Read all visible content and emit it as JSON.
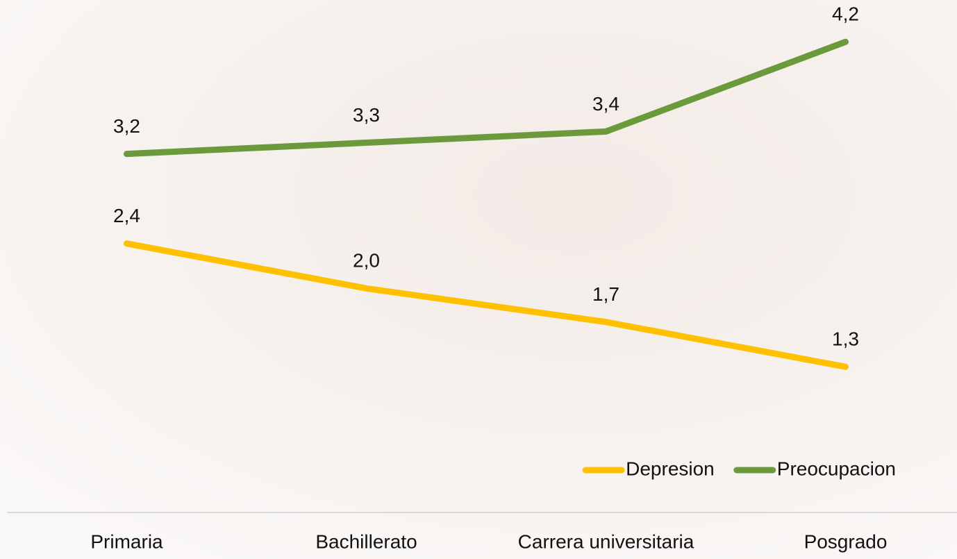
{
  "chart_data": {
    "type": "line",
    "categories": [
      "Primaria",
      "Bachillerato",
      "Carrera universitaria",
      "Posgrado"
    ],
    "series": [
      {
        "name": "Depresion",
        "color": "#ffc000",
        "values": [
          2.4,
          2.0,
          1.7,
          1.3
        ],
        "value_labels": [
          "2,4",
          "2,0",
          "1,7",
          "1,3"
        ]
      },
      {
        "name": "Preocupacion",
        "color": "#6b9a3c",
        "values": [
          3.2,
          3.3,
          3.4,
          4.2
        ],
        "value_labels": [
          "3,2",
          "3,3",
          "3,4",
          "4,2"
        ]
      }
    ],
    "ylim": [
      0,
      4.4
    ],
    "legend": "bottom-right"
  }
}
